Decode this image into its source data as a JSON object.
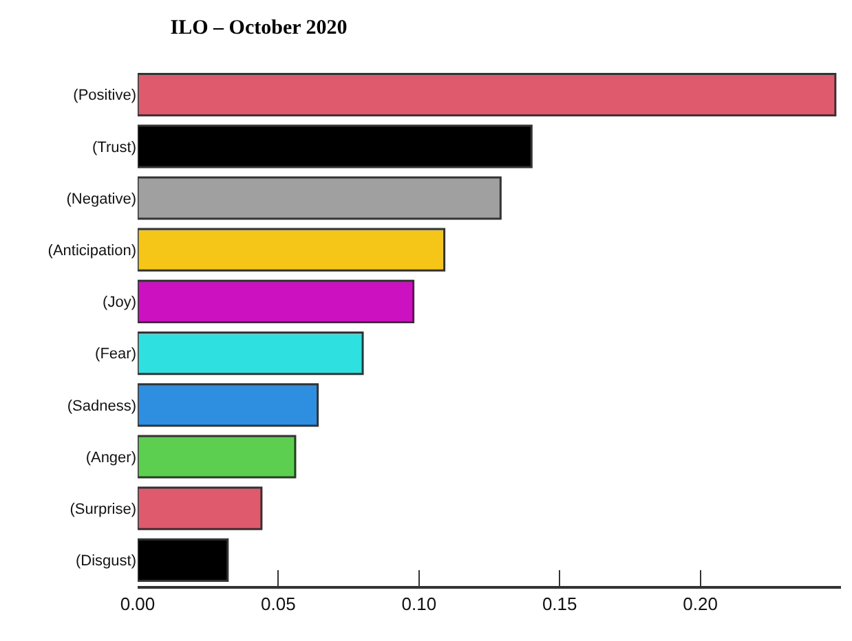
{
  "chart_data": {
    "type": "bar",
    "orientation": "horizontal",
    "title": "ILO – October 2020",
    "categories": [
      "(Positive)",
      "(Trust)",
      "(Negative)",
      "(Anticipation)",
      "(Joy)",
      "(Fear)",
      "(Sadness)",
      "(Anger)",
      "(Surprise)",
      "(Disgust)"
    ],
    "values": [
      0.248,
      0.14,
      0.129,
      0.109,
      0.098,
      0.08,
      0.064,
      0.056,
      0.044,
      0.032
    ],
    "colors": [
      "#e05a6e",
      "#000000",
      "#a0a0a0",
      "#f5c518",
      "#cc11c0",
      "#2ee0e0",
      "#2e8ee0",
      "#5ccf50",
      "#e05a6e",
      "#000000"
    ],
    "xlim": [
      0,
      0.25
    ],
    "xticks": [
      {
        "value": 0,
        "label": "0.00"
      },
      {
        "value": 0.05,
        "label": "0.05"
      },
      {
        "value": 0.1,
        "label": "0.10"
      },
      {
        "value": 0.15,
        "label": "0.15"
      },
      {
        "value": 0.2,
        "label": "0.20"
      }
    ],
    "legend": false
  }
}
